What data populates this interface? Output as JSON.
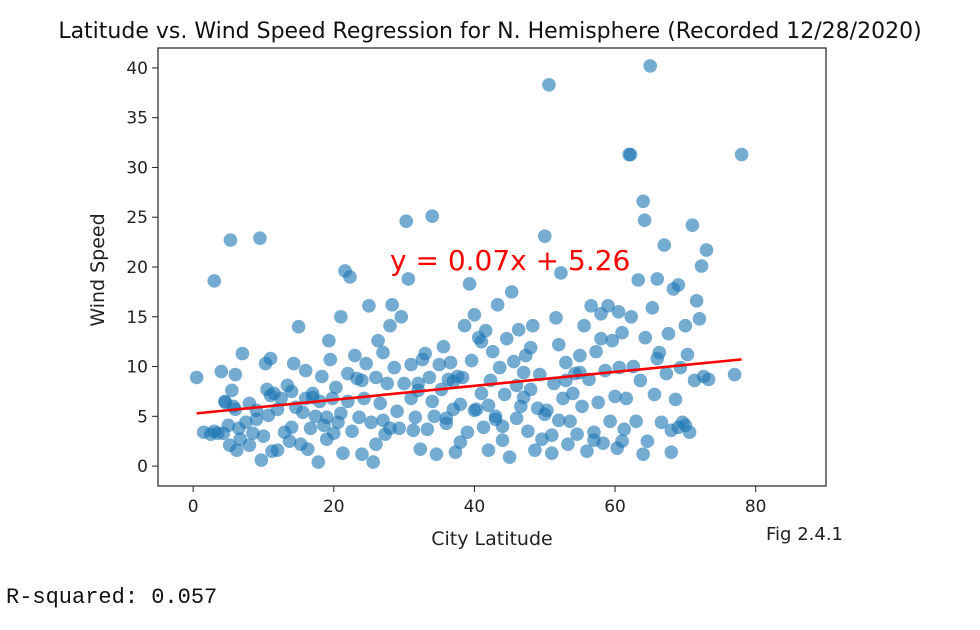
{
  "chart_data": {
    "type": "scatter",
    "title": "Latitude vs. Wind Speed Regression for N. Hemisphere (Recorded 12/28/2020)",
    "xlabel": "City Latitude",
    "ylabel": "Wind Speed",
    "xlim": [
      -5,
      90
    ],
    "ylim": [
      -2,
      42
    ],
    "xticks": [
      0,
      20,
      40,
      60,
      80
    ],
    "yticks": [
      0,
      5,
      10,
      15,
      20,
      25,
      30,
      35,
      40
    ],
    "grid": false,
    "colors": {
      "points": "#1f77b4",
      "line": "#ff0000"
    },
    "regression": {
      "slope": 0.07,
      "intercept": 5.26,
      "x_range": [
        0.5,
        78
      ],
      "equation": "y = 0.07x + 5.26"
    },
    "note": "Fig 2.4.1",
    "points": [
      [
        0.5,
        8.9
      ],
      [
        1.5,
        3.4
      ],
      [
        2.5,
        3.2
      ],
      [
        3,
        18.6
      ],
      [
        3.5,
        3.3
      ],
      [
        4,
        9.5
      ],
      [
        4.3,
        3.3
      ],
      [
        4.6,
        6.4
      ],
      [
        5,
        4.1
      ],
      [
        5.2,
        2.1
      ],
      [
        5.3,
        22.7
      ],
      [
        5.5,
        7.6
      ],
      [
        5.7,
        6
      ],
      [
        6,
        9.2
      ],
      [
        6.2,
        1.6
      ],
      [
        6.5,
        3.8
      ],
      [
        6.7,
        2.7
      ],
      [
        7,
        11.3
      ],
      [
        7.5,
        4.4
      ],
      [
        8,
        6.3
      ],
      [
        8.5,
        3.3
      ],
      [
        9,
        5.6
      ],
      [
        9.5,
        22.9
      ],
      [
        9.7,
        0.6
      ],
      [
        10,
        3
      ],
      [
        10.3,
        10.3
      ],
      [
        10.5,
        7.7
      ],
      [
        10.7,
        5.1
      ],
      [
        11,
        10.8
      ],
      [
        11.2,
        1.5
      ],
      [
        11.5,
        7.3
      ],
      [
        12,
        5.7
      ],
      [
        12.5,
        6.8
      ],
      [
        13,
        3.4
      ],
      [
        13.4,
        8.1
      ],
      [
        13.7,
        2.5
      ],
      [
        14,
        7.5
      ],
      [
        14.3,
        10.3
      ],
      [
        14.6,
        5.9
      ],
      [
        15,
        14
      ],
      [
        15.3,
        2.2
      ],
      [
        15.6,
        5.4
      ],
      [
        16,
        6.8
      ],
      [
        16.3,
        1.7
      ],
      [
        16.7,
        3.8
      ],
      [
        17,
        7.3
      ],
      [
        17.4,
        5
      ],
      [
        17.8,
        0.4
      ],
      [
        18,
        6.5
      ],
      [
        18.3,
        9
      ],
      [
        18.6,
        4.1
      ],
      [
        19,
        2.7
      ],
      [
        19.3,
        12.6
      ],
      [
        19.5,
        10.7
      ],
      [
        19.8,
        6.8
      ],
      [
        20,
        3.3
      ],
      [
        20.3,
        7.9
      ],
      [
        20.6,
        4.4
      ],
      [
        21,
        15
      ],
      [
        21.3,
        1.3
      ],
      [
        21.6,
        19.6
      ],
      [
        22,
        6.5
      ],
      [
        22.3,
        19
      ],
      [
        22.6,
        3.5
      ],
      [
        23,
        11.1
      ],
      [
        23.3,
        8.8
      ],
      [
        23.6,
        4.9
      ],
      [
        24,
        1.2
      ],
      [
        24.3,
        6.8
      ],
      [
        24.6,
        10.3
      ],
      [
        25,
        16.1
      ],
      [
        25.3,
        4.4
      ],
      [
        25.6,
        0.4
      ],
      [
        26,
        8.9
      ],
      [
        26.3,
        12.6
      ],
      [
        26.6,
        6.3
      ],
      [
        27,
        11.4
      ],
      [
        27.3,
        3.2
      ],
      [
        27.6,
        8.3
      ],
      [
        28,
        14.1
      ],
      [
        28.3,
        16.2
      ],
      [
        28.6,
        9.9
      ],
      [
        29,
        5.5
      ],
      [
        29.3,
        3.8
      ],
      [
        29.6,
        15
      ],
      [
        30,
        8.3
      ],
      [
        30.3,
        24.6
      ],
      [
        30.6,
        18.8
      ],
      [
        31,
        6.8
      ],
      [
        31.3,
        3.6
      ],
      [
        31.6,
        4.9
      ],
      [
        32,
        8.3
      ],
      [
        32.3,
        1.7
      ],
      [
        32.6,
        10.7
      ],
      [
        33,
        11.3
      ],
      [
        33.3,
        3.7
      ],
      [
        33.6,
        8.9
      ],
      [
        34,
        25.1
      ],
      [
        34.3,
        5
      ],
      [
        34.6,
        1.2
      ],
      [
        35,
        10.2
      ],
      [
        35.3,
        7.7
      ],
      [
        35.6,
        12
      ],
      [
        36,
        4.3
      ],
      [
        36.3,
        8.7
      ],
      [
        36.6,
        10.4
      ],
      [
        37,
        5.7
      ],
      [
        37.3,
        1.4
      ],
      [
        37.6,
        9
      ],
      [
        38,
        6.2
      ],
      [
        38.3,
        8.9
      ],
      [
        38.6,
        14.1
      ],
      [
        39,
        3.4
      ],
      [
        39.3,
        18.3
      ],
      [
        39.6,
        10.6
      ],
      [
        40,
        15.2
      ],
      [
        40.3,
        5.7
      ],
      [
        40.6,
        12.9
      ],
      [
        41,
        7.3
      ],
      [
        41.3,
        3.9
      ],
      [
        41.6,
        13.6
      ],
      [
        42,
        1.6
      ],
      [
        42.3,
        8.6
      ],
      [
        42.6,
        11.5
      ],
      [
        43,
        5
      ],
      [
        43.3,
        16.2
      ],
      [
        43.6,
        9.9
      ],
      [
        44,
        2.6
      ],
      [
        44.3,
        7.2
      ],
      [
        44.6,
        12.8
      ],
      [
        45,
        0.9
      ],
      [
        45.3,
        17.5
      ],
      [
        45.6,
        10.5
      ],
      [
        46,
        4.8
      ],
      [
        46.3,
        13.7
      ],
      [
        46.6,
        6
      ],
      [
        47,
        9.4
      ],
      [
        47.3,
        11.1
      ],
      [
        47.6,
        3.5
      ],
      [
        48,
        7.7
      ],
      [
        48.3,
        14.1
      ],
      [
        48.6,
        1.6
      ],
      [
        49,
        5.8
      ],
      [
        49.3,
        9.2
      ],
      [
        49.6,
        2.7
      ],
      [
        50,
        23.1
      ],
      [
        50.3,
        5.6
      ],
      [
        50.6,
        38.3
      ],
      [
        51,
        3.1
      ],
      [
        51.3,
        8.3
      ],
      [
        51.6,
        14.9
      ],
      [
        52,
        12.2
      ],
      [
        52.3,
        19.4
      ],
      [
        52.6,
        6.8
      ],
      [
        53,
        10.4
      ],
      [
        53.3,
        2.2
      ],
      [
        53.6,
        4.5
      ],
      [
        54,
        7.3
      ],
      [
        54.3,
        9.3
      ],
      [
        54.6,
        3.2
      ],
      [
        55,
        11.1
      ],
      [
        55.3,
        6
      ],
      [
        55.6,
        14.1
      ],
      [
        56,
        1.5
      ],
      [
        56.3,
        8.7
      ],
      [
        56.6,
        16.1
      ],
      [
        57,
        3.4
      ],
      [
        57.3,
        11.5
      ],
      [
        57.6,
        6.4
      ],
      [
        58,
        15.3
      ],
      [
        58.3,
        2.3
      ],
      [
        58.6,
        9.6
      ],
      [
        59,
        16.1
      ],
      [
        59.3,
        4.5
      ],
      [
        59.6,
        12.6
      ],
      [
        60,
        7
      ],
      [
        60.3,
        1.8
      ],
      [
        60.6,
        9.9
      ],
      [
        61,
        13.4
      ],
      [
        61.3,
        3.7
      ],
      [
        61.6,
        6.8
      ],
      [
        62,
        31.3
      ],
      [
        62.3,
        15
      ],
      [
        62.6,
        10
      ],
      [
        63,
        4.5
      ],
      [
        63.3,
        18.7
      ],
      [
        63.6,
        8.6
      ],
      [
        64,
        26.6
      ],
      [
        64.3,
        12.9
      ],
      [
        64.6,
        2.5
      ],
      [
        65,
        40.2
      ],
      [
        65.3,
        15.9
      ],
      [
        65.6,
        7.2
      ],
      [
        66,
        18.8
      ],
      [
        66.3,
        11.4
      ],
      [
        66.6,
        4.4
      ],
      [
        67,
        22.2
      ],
      [
        67.3,
        9.3
      ],
      [
        67.6,
        13.3
      ],
      [
        68,
        3.6
      ],
      [
        68.3,
        17.8
      ],
      [
        68.6,
        6.7
      ],
      [
        69,
        18.2
      ],
      [
        69.3,
        9.9
      ],
      [
        69.6,
        4.4
      ],
      [
        70,
        14.1
      ],
      [
        70.3,
        11.2
      ],
      [
        70.6,
        3.4
      ],
      [
        71,
        24.2
      ],
      [
        71.3,
        8.6
      ],
      [
        71.6,
        16.6
      ],
      [
        72,
        14.8
      ],
      [
        72.3,
        20.1
      ],
      [
        72.6,
        9
      ],
      [
        73,
        21.7
      ],
      [
        73.3,
        8.7
      ],
      [
        77,
        9.2
      ],
      [
        78,
        31.3
      ],
      [
        51,
        1.3
      ],
      [
        58,
        12.8
      ],
      [
        62.2,
        31.3
      ],
      [
        64.2,
        24.7
      ],
      [
        60.5,
        15.5
      ],
      [
        55,
        9.4
      ],
      [
        47,
        6.9
      ],
      [
        43,
        4.7
      ],
      [
        38,
        2.4
      ],
      [
        34,
        6.5
      ],
      [
        28,
        3.8
      ],
      [
        24,
        8.6
      ],
      [
        19,
        4.9
      ],
      [
        14,
        3.9
      ],
      [
        9,
        4.7
      ],
      [
        6,
        5.7
      ],
      [
        12,
        1.6
      ],
      [
        17,
        6.9
      ],
      [
        22,
        9.3
      ],
      [
        27,
        4.6
      ],
      [
        32,
        7.6
      ],
      [
        37,
        8.5
      ],
      [
        42,
        6.1
      ],
      [
        46,
        8.1
      ],
      [
        52,
        4.6
      ],
      [
        57,
        2.6
      ],
      [
        61,
        2.5
      ],
      [
        66,
        10.8
      ],
      [
        69,
        3.9
      ],
      [
        64,
        1.2
      ],
      [
        68,
        1.4
      ],
      [
        70,
        4.1
      ],
      [
        40,
        5.6
      ],
      [
        44,
        4
      ],
      [
        48,
        11.9
      ],
      [
        50,
        5.2
      ],
      [
        53,
        8.6
      ],
      [
        41,
        12.5
      ],
      [
        36,
        4.8
      ],
      [
        31,
        10.2
      ],
      [
        26,
        2.2
      ],
      [
        21,
        5.3
      ],
      [
        16,
        9.6
      ],
      [
        11,
        7.1
      ],
      [
        8,
        2.1
      ],
      [
        4.5,
        6.5
      ],
      [
        3,
        3.5
      ]
    ]
  },
  "output": {
    "rsquared_text": "R-squared: 0.057"
  }
}
